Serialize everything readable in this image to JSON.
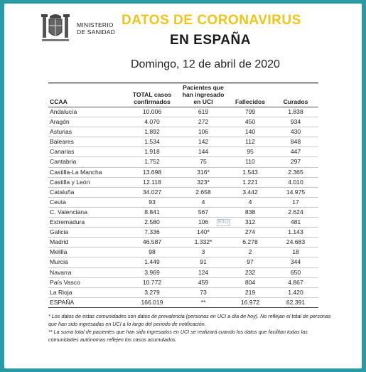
{
  "header": {
    "ministry_line1": "MINISTERIO",
    "ministry_line2": "DE SANIDAD",
    "title_line1": "DATOS DE CORONAVIRUS",
    "title_line2": "EN ESPAÑA",
    "date": "Domingo, 12 de abril de 2020",
    "accent_color": "#f0c419",
    "border_color": "#2a9aa5"
  },
  "table": {
    "headers": {
      "ccaa": "CCAA",
      "total_line1": "TOTAL casos",
      "total_line2": "confirmados",
      "uci_line1": "Pacientes que",
      "uci_line2": "han ingresado",
      "uci_line3": "en UCI",
      "fallecidos": "Fallecidos",
      "curados": "Curados"
    },
    "rows": [
      {
        "ccaa": "Andalucía",
        "total": "10.006",
        "uci": "619",
        "fallecidos": "799",
        "curados": "1.838"
      },
      {
        "ccaa": "Aragón",
        "total": "4.070",
        "uci": "272",
        "fallecidos": "450",
        "curados": "934"
      },
      {
        "ccaa": "Asturias",
        "total": "1.892",
        "uci": "106",
        "fallecidos": "140",
        "curados": "430"
      },
      {
        "ccaa": "Baleares",
        "total": "1.534",
        "uci": "142",
        "fallecidos": "112",
        "curados": "848"
      },
      {
        "ccaa": "Canarias",
        "total": "1.918",
        "uci": "144",
        "fallecidos": "95",
        "curados": "447"
      },
      {
        "ccaa": "Cantabria",
        "total": "1.752",
        "uci": "75",
        "fallecidos": "110",
        "curados": "297"
      },
      {
        "ccaa": "Castilla-La Mancha",
        "total": "13.698",
        "uci": "316*",
        "fallecidos": "1.543",
        "curados": "2.365"
      },
      {
        "ccaa": "Castilla y León",
        "total": "12.118",
        "uci": "323*",
        "fallecidos": "1.221",
        "curados": "4.010"
      },
      {
        "ccaa": "Cataluña",
        "total": "34.027",
        "uci": "2.658",
        "fallecidos": "3.442",
        "curados": "14.975"
      },
      {
        "ccaa": "Ceuta",
        "total": "93",
        "uci": "4",
        "fallecidos": "4",
        "curados": "17"
      },
      {
        "ccaa": "C. Valenciana",
        "total": "8.841",
        "uci": "567",
        "fallecidos": "838",
        "curados": "2.624"
      },
      {
        "ccaa": "Extremadura",
        "total": "2.580",
        "uci": "106",
        "fallecidos": "312",
        "curados": "481"
      },
      {
        "ccaa": "Galicia",
        "total": "7.336",
        "uci": "140*",
        "fallecidos": "274",
        "curados": "1.143"
      },
      {
        "ccaa": "Madrid",
        "total": "46.587",
        "uci": "1.332*",
        "fallecidos": "6.278",
        "curados": "24.683"
      },
      {
        "ccaa": "Melilla",
        "total": "98",
        "uci": "3",
        "fallecidos": "2",
        "curados": "18"
      },
      {
        "ccaa": "Murcia",
        "total": "1.449",
        "uci": "91",
        "fallecidos": "97",
        "curados": "344"
      },
      {
        "ccaa": "Navarra",
        "total": "3.969",
        "uci": "124",
        "fallecidos": "232",
        "curados": "650"
      },
      {
        "ccaa": "País Vasco",
        "total": "10.772",
        "uci": "459",
        "fallecidos": "804",
        "curados": "4.867"
      },
      {
        "ccaa": "La Rioja",
        "total": "3.279",
        "uci": "73",
        "fallecidos": "219",
        "curados": "1.420"
      }
    ],
    "total_row": {
      "ccaa": "ESPAÑA",
      "total": "166.019",
      "uci": "**",
      "fallecidos": "16.972",
      "curados": "62.391"
    }
  },
  "watermark": "Elfsz",
  "notes": {
    "note1": "* Los datos de estas comunidades son datos de prevalencia (personas en UCI a día de hoy). No reflejan el total de personas que han sido ingresadas en UCI a lo largo del periodo de notificación.",
    "note2": "** La suma total de pacientes que han sido ingresados en UCI se realizará cuando los datos que facilitan todas las comunidades autónomas reflejen los casos acumulados."
  }
}
